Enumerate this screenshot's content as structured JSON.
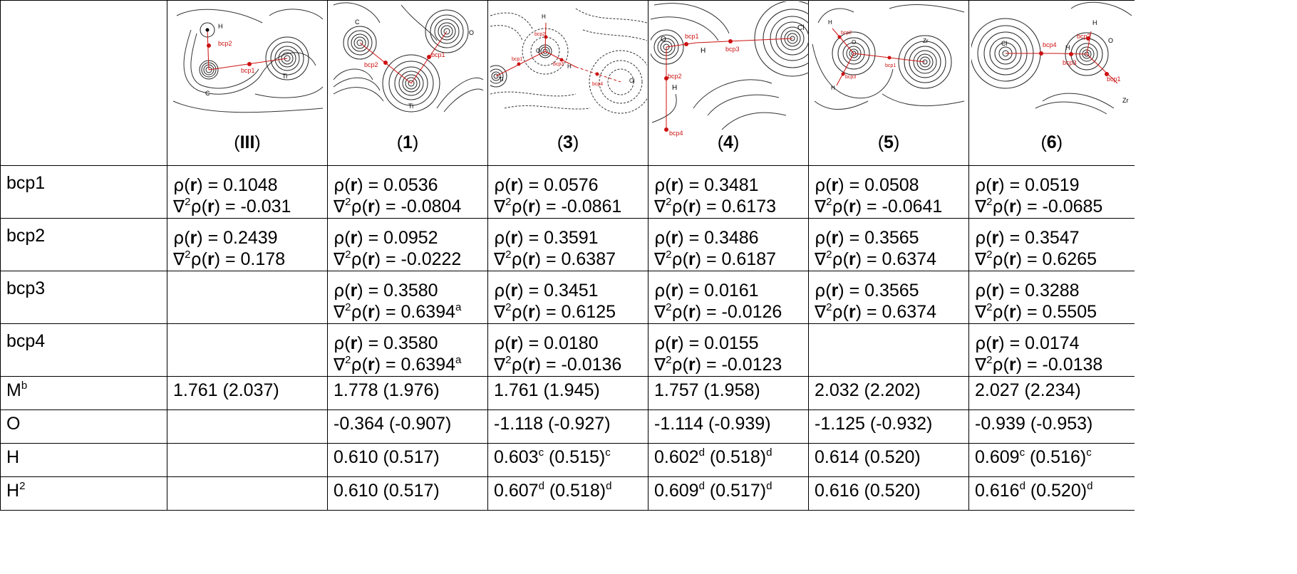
{
  "sym": {
    "rho": "ρ",
    "nabla": "∇",
    "sq": "2",
    "r": "r"
  },
  "plots": [
    {
      "col": "III",
      "labels": {
        "H": "H",
        "bcp2": "bcp2",
        "bcp1": "bcp1",
        "C": "C",
        "Ti": "Ti"
      }
    },
    {
      "col": "1",
      "labels": {
        "C": "C",
        "O": "O",
        "bcp1": "bcp1",
        "bcp2": "bcp2",
        "Ti": "Ti"
      }
    },
    {
      "col": "3",
      "labels": {
        "H": "H",
        "O": "O",
        "bcp1": "bcp1",
        "bcp2": "bcp2",
        "bcp3": "bcp3",
        "bcp4": "bcp4",
        "Ti": "Ti",
        "Cl": "Cl",
        "H2": "H"
      }
    },
    {
      "col": "4",
      "labels": {
        "O": "O",
        "bcp1": "bcp1",
        "H": "H",
        "bcp3": "bcp3",
        "Cl": "Cl",
        "bcp2": "bcp2",
        "H2": "H",
        "bcp4": "bcp4"
      }
    },
    {
      "col": "5",
      "labels": {
        "H": "H",
        "bcp2": "bcp2",
        "O": "O",
        "Zr": "Zr",
        "bcp1": "bcp1",
        "bcp3": "bcp3",
        "H2": "H"
      }
    },
    {
      "col": "6",
      "labels": {
        "Cl": "Cl",
        "bcp4": "bcp4",
        "H": "H",
        "bcp2": "bcp2",
        "O": "O",
        "H2": "H",
        "bcp3": "bcp3",
        "bcp1": "bcp1",
        "Zr": "Zr"
      }
    }
  ],
  "columns": [
    "III",
    "1",
    "3",
    "4",
    "5",
    "6"
  ],
  "rows": {
    "bcp1": {
      "label": "bcp1",
      "cells": [
        {
          "rho": "0.1048",
          "lap": "-0.031"
        },
        {
          "rho": "0.0536",
          "lap": "-0.0804"
        },
        {
          "rho": "0.0576",
          "lap": "-0.0861"
        },
        {
          "rho": "0.3481",
          "lap": "0.6173"
        },
        {
          "rho": "0.0508",
          "lap": "-0.0641"
        },
        {
          "rho": "0.0519",
          "lap": "-0.0685"
        }
      ]
    },
    "bcp2": {
      "label": "bcp2",
      "cells": [
        {
          "rho": "0.2439",
          "lap": "0.178"
        },
        {
          "rho": "0.0952",
          "lap": "-0.0222"
        },
        {
          "rho": "0.3591",
          "lap": "0.6387"
        },
        {
          "rho": "0.3486",
          "lap": "0.6187"
        },
        {
          "rho": "0.3565",
          "lap": "0.6374"
        },
        {
          "rho": "0.3547",
          "lap": "0.6265"
        }
      ]
    },
    "bcp3": {
      "label": "bcp3",
      "cells": [
        null,
        {
          "rho": "0.3580",
          "lap": "0.6394",
          "lapsup": "a"
        },
        {
          "rho": "0.3451",
          "lap": "0.6125"
        },
        {
          "rho": "0.0161",
          "lap": "-0.0126"
        },
        {
          "rho": "0.3565",
          "lap": "0.6374"
        },
        {
          "rho": "0.3288",
          "lap": "0.5505"
        }
      ]
    },
    "bcp4": {
      "label": "bcp4",
      "cells": [
        null,
        {
          "rho": "0.3580",
          "lap": "0.6394",
          "lapsup": "a"
        },
        {
          "rho": "0.0180",
          "lap": "-0.0136"
        },
        {
          "rho": "0.0155",
          "lap": "-0.0123"
        },
        null,
        {
          "rho": "0.0174",
          "lap": "-0.0138"
        }
      ]
    },
    "M": {
      "label": "M",
      "sup": "b",
      "cells": [
        {
          "a": "1.761 (2.037)"
        },
        {
          "a": "1.778 (1.976)"
        },
        {
          "a": "1.761 (1.945)"
        },
        {
          "a": "1.757 (1.958)"
        },
        {
          "a": "2.032 (2.202)"
        },
        {
          "a": "2.027 (2.234)"
        }
      ]
    },
    "O": {
      "label": "O",
      "cells": [
        null,
        {
          "a": "-0.364 (-0.907)"
        },
        {
          "a": "-1.118 (-0.927)"
        },
        {
          "a": "-1.114 (-0.939)"
        },
        {
          "a": "-1.125 (-0.932)"
        },
        {
          "a": "-0.939 (-0.953)"
        }
      ]
    },
    "H": {
      "label": "H",
      "cells": [
        null,
        {
          "a": "0.610 (0.517)"
        },
        {
          "v": "0.603",
          "vs": "c",
          "p": "(0.515)",
          "ps": "c"
        },
        {
          "v": "0.602",
          "vs": "d",
          "p": "(0.518)",
          "ps": "d"
        },
        {
          "a": "0.614 (0.520)"
        },
        {
          "v": "0.609",
          "vs": "c",
          "p": "(0.516)",
          "ps": "c"
        }
      ]
    },
    "H2": {
      "label": "H",
      "sup": "2",
      "cells": [
        null,
        {
          "a": "0.610 (0.517)"
        },
        {
          "v": "0.607",
          "vs": "d",
          "p": "(0.518)",
          "ps": "d"
        },
        {
          "v": "0.609",
          "vs": "d",
          "p": "(0.517)",
          "ps": "d"
        },
        {
          "a": "0.616 (0.520)"
        },
        {
          "v": "0.616",
          "vs": "d",
          "p": "(0.520)",
          "ps": "d"
        }
      ]
    }
  }
}
